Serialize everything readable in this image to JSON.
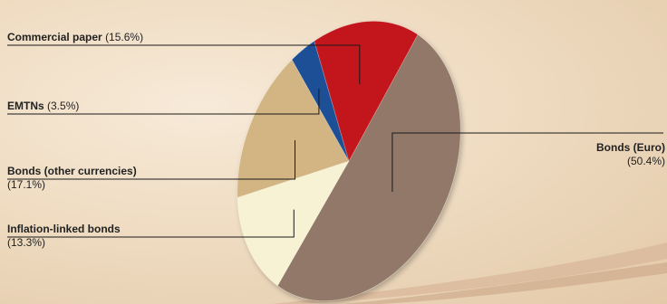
{
  "chart_data": {
    "type": "pie",
    "title": "",
    "legend": "labels beside slices",
    "slices": [
      {
        "name": "Bonds (Euro)",
        "value": 50.4,
        "value_label": "(50.4%)",
        "color": "#917868"
      },
      {
        "name": "Inflation-linked bonds",
        "value": 13.3,
        "value_label": "(13.3%)",
        "color": "#f6f2d3"
      },
      {
        "name": "Bonds (other currencies)",
        "value": 17.1,
        "value_label": "(17.1%)",
        "color": "#d2b583"
      },
      {
        "name": "EMTNs",
        "value": 3.5,
        "value_label": "(3.5%)",
        "color": "#1b4f96"
      },
      {
        "name": "Commercial paper",
        "value": 15.6,
        "value_label": "(15.6%)",
        "color": "#c3151b"
      }
    ]
  }
}
